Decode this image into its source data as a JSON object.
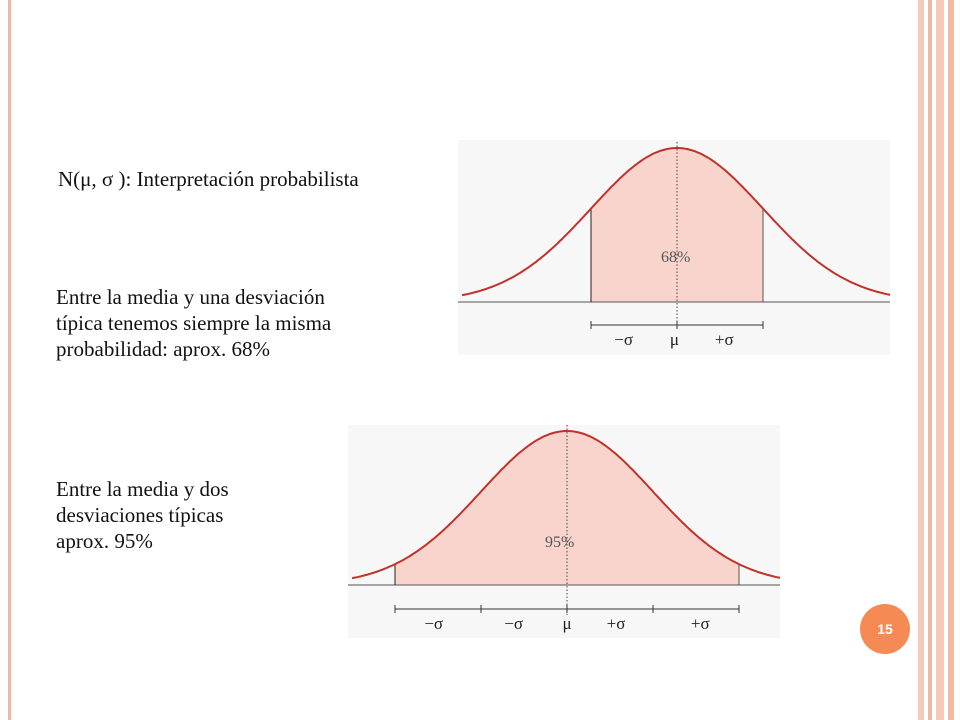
{
  "slide": {
    "title": "N(μ,  σ ): Interpretación probabilista",
    "paragraph_1": " Entre la media y una  desviación\ntípica tenemos siempre la misma\nprobabilidad:  aprox. 68%",
    "paragraph_2": "Entre la media y dos\ndesviaciones típicas\naprox. 95%",
    "page_number": "15"
  },
  "colors": {
    "frame": "#f2b8a6",
    "curve": "#c0322c",
    "shade": "#f9d4cc",
    "badge": "#f58a54"
  },
  "chart_data": [
    {
      "type": "area",
      "distribution": "normal",
      "shaded_from_sd": -1,
      "shaded_to_sd": 1,
      "shaded_label": "68%",
      "tick_labels": [
        "−σ",
        "μ",
        "+σ"
      ]
    },
    {
      "type": "area",
      "distribution": "normal",
      "shaded_from_sd": -2,
      "shaded_to_sd": 2,
      "shaded_label": "95%",
      "tick_labels": [
        "−σ",
        "−σ",
        "μ",
        "+σ",
        "+σ"
      ]
    }
  ]
}
